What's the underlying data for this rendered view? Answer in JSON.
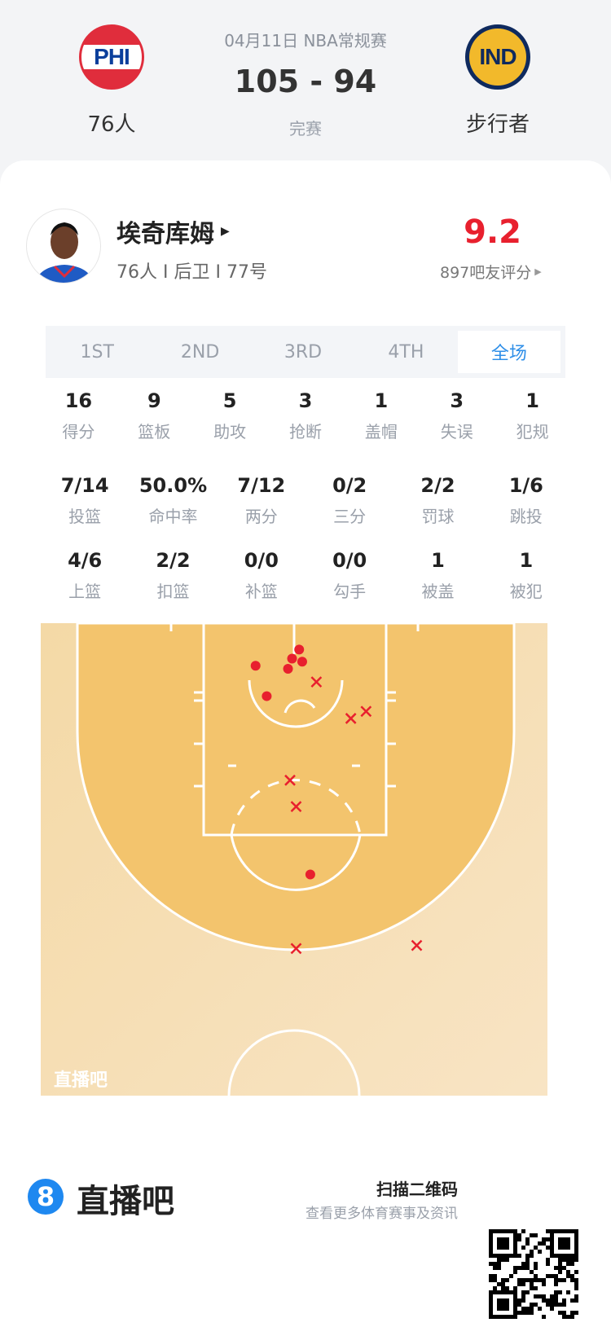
{
  "match": {
    "date_league": "04月11日 NBA常规赛",
    "score": "105 - 94",
    "status": "完赛",
    "home": {
      "abbr": "PHI",
      "name": "76人",
      "color": "#e02d3c"
    },
    "away": {
      "abbr": "IND",
      "name": "步行者",
      "color": "#f2b92b"
    }
  },
  "player": {
    "name": "埃奇库姆",
    "info": "76人 I 后卫 I 77号",
    "rating": "9.2",
    "rating_label": "897吧友评分",
    "rating_color": "#e8202e"
  },
  "tabs": [
    {
      "label": "1ST"
    },
    {
      "label": "2ND"
    },
    {
      "label": "3RD"
    },
    {
      "label": "4TH"
    },
    {
      "label": "全场",
      "active": true
    }
  ],
  "stats_rows": [
    [
      {
        "v": "16",
        "l": "得分"
      },
      {
        "v": "9",
        "l": "篮板"
      },
      {
        "v": "5",
        "l": "助攻"
      },
      {
        "v": "3",
        "l": "抢断"
      },
      {
        "v": "1",
        "l": "盖帽"
      },
      {
        "v": "3",
        "l": "失误"
      },
      {
        "v": "1",
        "l": "犯规"
      }
    ],
    [
      {
        "v": "7/14",
        "l": "投篮"
      },
      {
        "v": "50.0%",
        "l": "命中率"
      },
      {
        "v": "7/12",
        "l": "两分"
      },
      {
        "v": "0/2",
        "l": "三分"
      },
      {
        "v": "2/2",
        "l": "罚球"
      },
      {
        "v": "1/6",
        "l": "跳投"
      }
    ],
    [
      {
        "v": "4/6",
        "l": "上篮"
      },
      {
        "v": "2/2",
        "l": "扣篮"
      },
      {
        "v": "0/0",
        "l": "补篮"
      },
      {
        "v": "0/0",
        "l": "勾手"
      },
      {
        "v": "1",
        "l": "被盖"
      },
      {
        "v": "1",
        "l": "被犯"
      }
    ]
  ],
  "chart_data": {
    "type": "scatter",
    "xlabel": "",
    "ylabel": "",
    "note_units": "feet",
    "xlim": [
      -25,
      25
    ],
    "ylim": [
      0,
      47
    ],
    "series": [
      {
        "name": "",
        "marker": "dot",
        "color": "#e8202e",
        "points": [
          [
            0.5,
            2.6
          ],
          [
            -0.2,
            3.5
          ],
          [
            0.8,
            3.8
          ],
          [
            -0.6,
            4.5
          ],
          [
            -3.8,
            4.2
          ],
          [
            -2.7,
            7.2
          ],
          [
            1.6,
            24.8
          ]
        ]
      },
      {
        "name": "",
        "marker": "x",
        "color": "#e8202e",
        "points": [
          [
            2.2,
            5.8
          ],
          [
            5.6,
            9.4
          ],
          [
            7.1,
            8.7
          ],
          [
            -0.4,
            15.5
          ],
          [
            0.2,
            18.1
          ],
          [
            0.2,
            32.1
          ],
          [
            12.1,
            31.8
          ]
        ]
      }
    ],
    "watermark": "直播吧"
  },
  "footer": {
    "brand": "直播吧",
    "brand_icon": "8",
    "qr_title": "扫描二维码",
    "qr_sub": "查看更多体育赛事及资讯"
  }
}
